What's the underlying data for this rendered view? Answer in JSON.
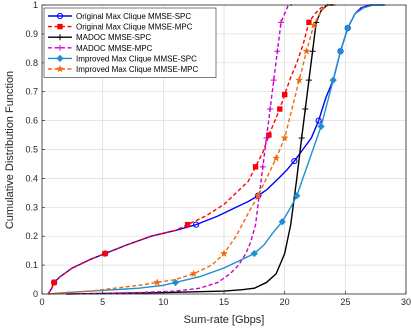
{
  "chart_data": {
    "type": "line",
    "xlabel": "Sum-rate [Gbps]",
    "ylabel": "Cumulative Distribution Function",
    "xlim": [
      0,
      30
    ],
    "ylim": [
      0,
      1
    ],
    "xticks": [
      "0",
      "5",
      "10",
      "15",
      "20",
      "25",
      "30"
    ],
    "yticks": [
      "0",
      "0.1",
      "0.2",
      "0.3",
      "0.4",
      "0.5",
      "0.6",
      "0.7",
      "0.8",
      "0.9",
      "1"
    ],
    "grid": true,
    "legend_position": "top-left",
    "series": [
      {
        "name": "Original Max Clique MMSE-SPC",
        "color": "#0000ff",
        "dash": "solid",
        "marker": "circle",
        "x": [
          0.5,
          0.8,
          1.0,
          1.5,
          2.5,
          4.0,
          5.2,
          7.0,
          9.0,
          11.0,
          12.7,
          14.5,
          16.0,
          17.0,
          17.8,
          18.5,
          19.5,
          20.2,
          20.8,
          21.5,
          22.2,
          22.8,
          23.4,
          24.0,
          24.6,
          25.2,
          25.8,
          26.3,
          27.0,
          28.2
        ],
        "y": [
          0.0,
          0.02,
          0.04,
          0.06,
          0.09,
          0.12,
          0.14,
          0.17,
          0.2,
          0.22,
          0.24,
          0.27,
          0.3,
          0.32,
          0.34,
          0.36,
          0.4,
          0.43,
          0.46,
          0.5,
          0.54,
          0.6,
          0.68,
          0.74,
          0.84,
          0.92,
          0.97,
          0.99,
          1.0,
          1.0
        ],
        "marker_indices": [
          2,
          6,
          10,
          14,
          18,
          21,
          24,
          25
        ]
      },
      {
        "name": "Original Max Clique MMSE-MPC",
        "color": "#ff0000",
        "dash": "dashed",
        "marker": "square",
        "x": [
          0.5,
          0.8,
          1.0,
          1.5,
          2.5,
          4.0,
          5.2,
          7.0,
          9.0,
          11.0,
          12.0,
          13.5,
          15.0,
          16.0,
          17.0,
          17.6,
          18.2,
          18.7,
          19.2,
          19.6,
          20.0,
          20.5,
          21.0,
          21.5,
          22.0,
          22.5,
          23.0,
          23.5,
          24.0
        ],
        "y": [
          0.0,
          0.02,
          0.04,
          0.06,
          0.09,
          0.12,
          0.14,
          0.17,
          0.2,
          0.22,
          0.24,
          0.27,
          0.31,
          0.35,
          0.39,
          0.44,
          0.49,
          0.55,
          0.6,
          0.64,
          0.69,
          0.75,
          0.8,
          0.86,
          0.94,
          0.97,
          0.99,
          1.0,
          1.0
        ],
        "marker_indices": [
          2,
          6,
          10,
          15,
          17,
          19,
          20,
          24
        ]
      },
      {
        "name": "MADOC MMSE-SPC",
        "color": "#000000",
        "dash": "solid",
        "marker": "plus",
        "x": [
          2.0,
          5.0,
          10.0,
          13.0,
          15.0,
          16.5,
          17.5,
          18.5,
          19.3,
          20.0,
          20.5,
          21.0,
          21.4,
          21.7,
          22.0,
          22.3,
          22.6,
          23.0,
          23.5,
          24.0
        ],
        "y": [
          0.0,
          0.002,
          0.005,
          0.008,
          0.01,
          0.015,
          0.02,
          0.04,
          0.07,
          0.14,
          0.24,
          0.4,
          0.54,
          0.64,
          0.74,
          0.84,
          0.94,
          0.98,
          1.0,
          1.0
        ],
        "marker_indices": [
          12,
          13,
          14,
          15,
          16
        ]
      },
      {
        "name": "MADOC MMSE-MPC",
        "color": "#cc00cc",
        "dash": "dashed",
        "marker": "plus",
        "x": [
          2.0,
          5.0,
          8.0,
          11.0,
          13.0,
          14.5,
          15.5,
          16.2,
          16.8,
          17.2,
          17.6,
          17.9,
          18.2,
          18.5,
          18.8,
          19.1,
          19.4,
          19.7,
          20.0,
          20.3,
          20.6
        ],
        "y": [
          0.0,
          0.002,
          0.005,
          0.01,
          0.02,
          0.04,
          0.07,
          0.1,
          0.14,
          0.18,
          0.24,
          0.34,
          0.44,
          0.54,
          0.64,
          0.74,
          0.84,
          0.94,
          0.97,
          1.0,
          1.0
        ],
        "marker_indices": [
          11,
          12,
          13,
          14,
          15,
          16,
          17
        ]
      },
      {
        "name": "Improved Max Clique MMSE-SPC",
        "color": "#1f8fcf",
        "dash": "solid",
        "marker": "diamond",
        "x": [
          0.5,
          2.0,
          4.0,
          6.0,
          8.0,
          10.0,
          11.0,
          13.0,
          15.0,
          16.5,
          17.5,
          18.3,
          19.0,
          19.8,
          20.5,
          21.0,
          21.5,
          22.0,
          22.5,
          23.0,
          23.5,
          24.0,
          24.6,
          25.2,
          25.8,
          26.5,
          27.3,
          28.3
        ],
        "y": [
          0.0,
          0.005,
          0.01,
          0.015,
          0.02,
          0.03,
          0.04,
          0.06,
          0.09,
          0.12,
          0.14,
          0.17,
          0.21,
          0.25,
          0.3,
          0.34,
          0.4,
          0.46,
          0.52,
          0.58,
          0.66,
          0.74,
          0.84,
          0.92,
          0.97,
          0.99,
          1.0,
          1.0
        ],
        "marker_indices": [
          6,
          10,
          13,
          15,
          19,
          21,
          22,
          23
        ]
      },
      {
        "name": "Improved Max Clique MMSE-MPC",
        "color": "#ee6a10",
        "dash": "dashed",
        "marker": "star",
        "x": [
          0.5,
          2.0,
          4.0,
          6.0,
          8.0,
          9.5,
          11.0,
          12.5,
          14.0,
          15.0,
          16.0,
          17.0,
          17.8,
          18.5,
          19.3,
          20.0,
          20.6,
          21.2,
          21.8,
          22.4,
          23.0,
          23.6,
          24.2
        ],
        "y": [
          0.0,
          0.005,
          0.01,
          0.02,
          0.03,
          0.04,
          0.05,
          0.07,
          0.1,
          0.14,
          0.2,
          0.28,
          0.34,
          0.4,
          0.47,
          0.54,
          0.64,
          0.74,
          0.84,
          0.93,
          0.98,
          1.0,
          1.0
        ],
        "marker_indices": [
          5,
          7,
          9,
          12,
          14,
          15,
          17,
          18,
          19
        ]
      }
    ]
  }
}
